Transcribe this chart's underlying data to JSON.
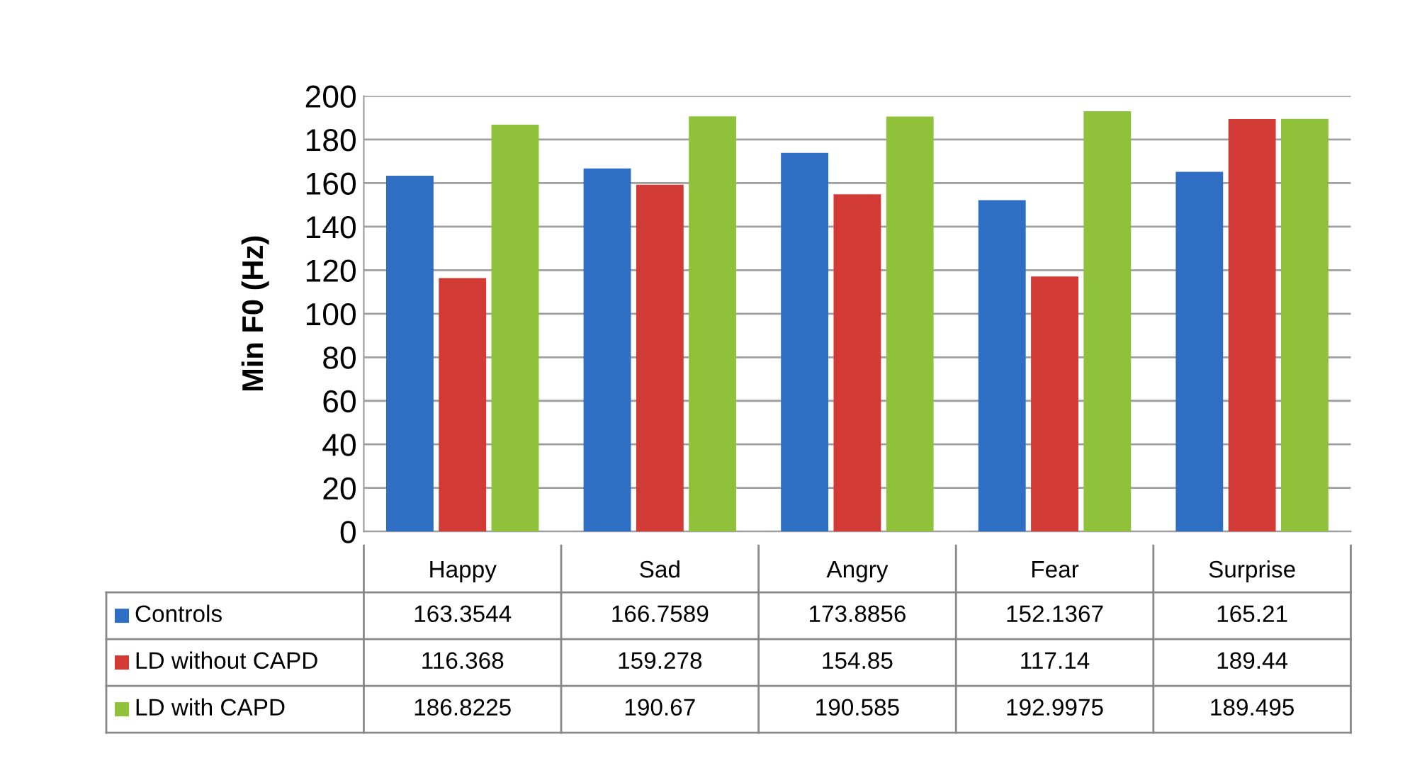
{
  "chart_data": {
    "type": "bar",
    "ylabel": "Min F0 (Hz)",
    "categories": [
      "Happy",
      "Sad",
      "Angry",
      "Fear",
      "Surprise"
    ],
    "series": [
      {
        "name": "Controls",
        "color": "#2e6fc4",
        "values": [
          163.3544,
          166.7589,
          173.8856,
          152.1367,
          165.21
        ]
      },
      {
        "name": "LD without CAPD",
        "color": "#d23a35",
        "values": [
          116.368,
          159.278,
          154.85,
          117.14,
          189.44
        ]
      },
      {
        "name": "LD with CAPD",
        "color": "#8fc23a",
        "values": [
          186.8225,
          190.67,
          190.585,
          192.9975,
          189.495
        ]
      }
    ],
    "ylim": [
      0,
      200
    ],
    "yticks": [
      0,
      20,
      40,
      60,
      80,
      100,
      120,
      140,
      160,
      180,
      200
    ],
    "grid": "y",
    "data_labels": true,
    "legend": "bottom"
  }
}
